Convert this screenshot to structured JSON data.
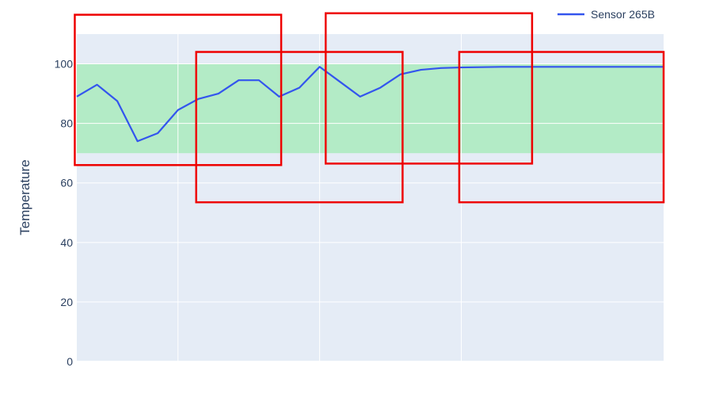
{
  "chart_data": {
    "type": "line",
    "title": "",
    "xlabel": "",
    "ylabel": "Temperature",
    "ylim": [
      0,
      110
    ],
    "yticks": [
      0,
      20,
      40,
      60,
      80,
      100
    ],
    "x_range": [
      0,
      29
    ],
    "x_gridlines": [
      5,
      12,
      19
    ],
    "grid": true,
    "legend_position": "top-right",
    "normal_band": {
      "y0": 70,
      "y1": 100
    },
    "series": [
      {
        "name": "Sensor 265B",
        "color": "#3355ee",
        "x": [
          0,
          1,
          2,
          3,
          4,
          5,
          6,
          7,
          8,
          9,
          10,
          11,
          12,
          13,
          14,
          15,
          16,
          17,
          18,
          19,
          20,
          21,
          22,
          23,
          24,
          25,
          26,
          27,
          28,
          29
        ],
        "values": [
          89,
          93,
          87.5,
          74,
          76.7,
          84.5,
          88.2,
          90,
          94.5,
          94.5,
          89,
          92,
          99,
          94,
          89,
          92,
          96.5,
          98,
          98.6,
          98.8,
          98.9,
          99,
          99,
          99,
          99,
          99,
          99,
          99,
          99,
          99
        ]
      }
    ],
    "highlight_boxes": [
      {
        "x_start": -0.1,
        "x_end": 10.1,
        "y_low": 66,
        "y_high": 116.5
      },
      {
        "x_start": 5.9,
        "x_end": 16.1,
        "y_low": 53.5,
        "y_high": 104
      },
      {
        "x_start": 12.3,
        "x_end": 22.5,
        "y_low": 66.5,
        "y_high": 117
      },
      {
        "x_start": 18.9,
        "x_end": 29,
        "y_low": 53.5,
        "y_high": 104
      }
    ],
    "colors": {
      "plot_background": "#e5ecf6",
      "band": "#b3ebc6",
      "grid": "#ffffff",
      "highlight": "#ee0000"
    }
  }
}
